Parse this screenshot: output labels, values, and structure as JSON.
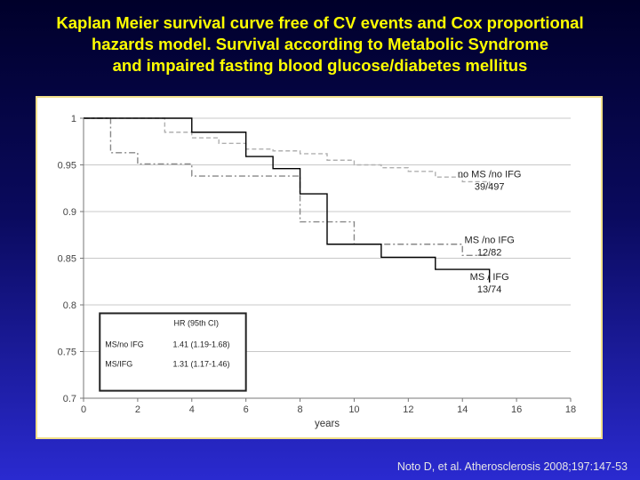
{
  "title": {
    "line1": "Kaplan Meier survival curve free of CV events and Cox proportional",
    "line2": "hazards model. Survival according to Metabolic Syndrome",
    "line3": "and impaired fasting blood glucose/diabetes mellitus"
  },
  "citation": "Noto D, et al. Atherosclerosis 2008;197:147-53",
  "colors": {
    "title": "#ffff00",
    "frame": "#f2e08a",
    "no_ms_curve": "#b0b0b0",
    "ms_no_ifg_curve": "#888888",
    "ms_ifg_curve": "#000000"
  },
  "chart_data": {
    "type": "line",
    "xlabel": "years",
    "ylabel": "",
    "xlim": [
      0,
      18
    ],
    "ylim": [
      0.7,
      1
    ],
    "xticks": [
      0,
      2,
      4,
      6,
      8,
      10,
      12,
      14,
      16,
      18
    ],
    "yticks": [
      0.7,
      0.75,
      0.8,
      0.85,
      0.9,
      0.95,
      1
    ],
    "ytick_labels": [
      "0.7",
      "0.75",
      "0.8",
      "0.85",
      "0.9",
      "0.95",
      "1"
    ],
    "grid": true,
    "step": true,
    "series": [
      {
        "name": "no MS /no IFG",
        "count": "39/497",
        "style": "dashed",
        "x": [
          0,
          3,
          4,
          5,
          6,
          7,
          8,
          9,
          10,
          11,
          12,
          13,
          14,
          15
        ],
        "y": [
          1,
          0.985,
          0.979,
          0.973,
          0.967,
          0.965,
          0.962,
          0.955,
          0.95,
          0.947,
          0.943,
          0.937,
          0.932,
          0.927
        ]
      },
      {
        "name": "MS /no IFG",
        "count": "12/82",
        "style": "dashdot",
        "x": [
          0,
          1,
          2,
          4,
          8,
          10,
          14,
          15
        ],
        "y": [
          1,
          0.963,
          0.951,
          0.938,
          0.889,
          0.865,
          0.853,
          0.853
        ]
      },
      {
        "name": "MS / IFG",
        "count": "13/74",
        "style": "solid",
        "x": [
          0,
          4,
          6,
          7,
          8,
          9,
          11,
          13,
          15
        ],
        "y": [
          1,
          0.985,
          0.959,
          0.946,
          0.919,
          0.865,
          0.851,
          0.838,
          0.824
        ]
      }
    ],
    "hr_table": {
      "header": "HR (95th CI)",
      "rows": [
        {
          "label": "MS/no IFG",
          "hr": "1.41",
          "ci": "(1.19-1.68)"
        },
        {
          "label": "MS/IFG",
          "hr": "1.31",
          "ci": "(1.17-1.46)"
        }
      ]
    }
  }
}
